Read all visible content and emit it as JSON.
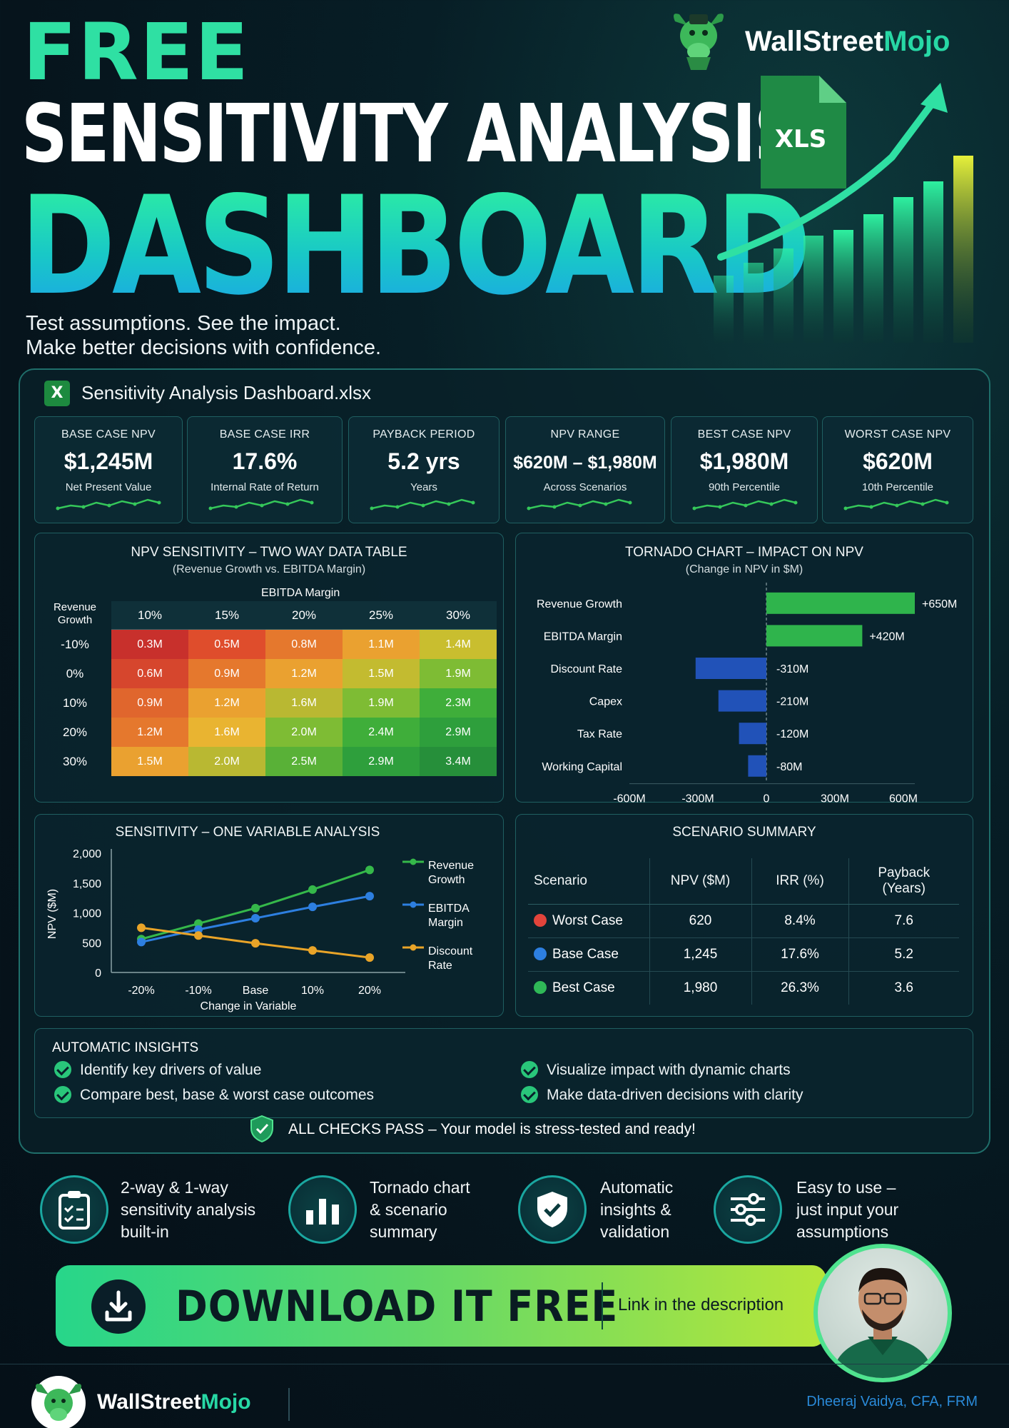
{
  "hero": {
    "free": "FREE",
    "title_line1": "SENSITIVITY ANALYSIS",
    "title_line2": "DASHBOARD",
    "subtitle_line1": "Test assumptions. See the impact.",
    "subtitle_line2": "Make better decisions with confidence.",
    "xls_label": "XLS"
  },
  "brand": {
    "name_main": "WallStreet",
    "name_accent": "Mojo"
  },
  "dashboard": {
    "file_name": "Sensitivity Analysis Dashboard.xlsx",
    "xl_badge": "X",
    "kpis": [
      {
        "label": "BASE CASE NPV",
        "value": "$1,245M",
        "caption": "Net Present Value"
      },
      {
        "label": "BASE CASE IRR",
        "value": "17.6%",
        "caption": "Internal Rate of Return"
      },
      {
        "label": "PAYBACK PERIOD",
        "value": "5.2 yrs",
        "caption": "Years"
      },
      {
        "label": "NPV RANGE",
        "value": "$620M – $1,980M",
        "caption": "Across Scenarios"
      },
      {
        "label": "BEST CASE NPV",
        "value": "$1,980M",
        "caption": "90th Percentile"
      },
      {
        "label": "WORST CASE NPV",
        "value": "$620M",
        "caption": "10th Percentile"
      }
    ],
    "two_way": {
      "title": "NPV SENSITIVITY – TWO WAY DATA TABLE",
      "subtitle": "(Revenue Growth vs. EBITDA Margin)",
      "col_axis_label": "EBITDA Margin",
      "row_axis_label_line1": "Revenue",
      "row_axis_label_line2": "Growth",
      "columns": [
        "10%",
        "15%",
        "20%",
        "25%",
        "30%"
      ],
      "rows": [
        "-10%",
        "0%",
        "10%",
        "20%",
        "30%"
      ],
      "cells": [
        [
          "0.3M",
          "0.5M",
          "0.8M",
          "1.1M",
          "1.4M"
        ],
        [
          "0.6M",
          "0.9M",
          "1.2M",
          "1.5M",
          "1.9M"
        ],
        [
          "0.9M",
          "1.2M",
          "1.6M",
          "1.9M",
          "2.3M"
        ],
        [
          "1.2M",
          "1.6M",
          "2.0M",
          "2.4M",
          "2.9M"
        ],
        [
          "1.5M",
          "2.0M",
          "2.5M",
          "2.9M",
          "3.4M"
        ]
      ],
      "cell_colors": [
        [
          "#c8302c",
          "#df4d2c",
          "#e5782d",
          "#eaa130",
          "#c9be2f"
        ],
        [
          "#d6462d",
          "#e5782d",
          "#eaa130",
          "#c3bb30",
          "#7ebc34"
        ],
        [
          "#e0662d",
          "#eaa130",
          "#b9b832",
          "#7ebc34",
          "#3fae3a"
        ],
        [
          "#e5782d",
          "#e9b431",
          "#7ebc34",
          "#3fae3a",
          "#2e9f3c"
        ],
        [
          "#eaa130",
          "#b9b832",
          "#59b137",
          "#2e9f3c",
          "#268f3a"
        ]
      ]
    },
    "tornado": {
      "title": "TORNADO CHART – IMPACT ON NPV",
      "subtitle": "(Change in NPV in $M)"
    },
    "one_way": {
      "title": "SENSITIVITY – ONE VARIABLE ANALYSIS",
      "legend_revenue_line1": "Revenue",
      "legend_revenue_line2": "Growth",
      "legend_ebitda_line1": "EBITDA",
      "legend_ebitda_line2": "Margin",
      "legend_discount_line1": "Discount",
      "legend_discount_line2": "Rate"
    },
    "scenario": {
      "title": "SCENARIO SUMMARY",
      "headers": {
        "scenario": "Scenario",
        "npv": "NPV ($M)",
        "irr": "IRR (%)",
        "payback_line1": "Payback",
        "payback_line2": "(Years)"
      },
      "rows": [
        {
          "name": "Worst Case",
          "npv": "620",
          "irr": "8.4%",
          "payback": "7.6",
          "color": "#e2443b"
        },
        {
          "name": "Base Case",
          "npv": "1,245",
          "irr": "17.6%",
          "payback": "5.2",
          "color": "#2d7fe0"
        },
        {
          "name": "Best Case",
          "npv": "1,980",
          "irr": "26.3%",
          "payback": "3.6",
          "color": "#2fb857"
        }
      ]
    },
    "insights": {
      "title": "AUTOMATIC INSIGHTS",
      "items": [
        "Identify key drivers of value",
        "Compare best, base & worst case outcomes",
        "Visualize impact with dynamic charts",
        "Make data-driven decisions with clarity"
      ],
      "all_checks": "ALL CHECKS PASS – Your model is stress-tested and ready!"
    }
  },
  "features": [
    {
      "text": "2-way & 1-way\nsensitivity analysis\nbuilt-in",
      "icon": "clipboard-checklist-icon"
    },
    {
      "text": "Tornado chart\n& scenario\nsummary",
      "icon": "bar-chart-icon"
    },
    {
      "text": "Automatic\ninsights &\nvalidation",
      "icon": "shield-check-icon"
    },
    {
      "text": "Easy to use –\njust input your\nassumptions",
      "icon": "sliders-icon"
    }
  ],
  "download": {
    "label": "DOWNLOAD IT FREE",
    "link_text": "Link in the description"
  },
  "footer": {
    "author": "Dheeraj Vaidya, CFA, FRM"
  },
  "chart_data": [
    {
      "type": "bar",
      "orientation": "horizontal",
      "title": "TORNADO CHART – IMPACT ON NPV",
      "subtitle": "(Change in NPV in $M)",
      "categories": [
        "Revenue Growth",
        "EBITDA Margin",
        "Discount Rate",
        "Capex",
        "Tax Rate",
        "Working Capital"
      ],
      "values": [
        650,
        420,
        -310,
        -210,
        -120,
        -80
      ],
      "value_labels": [
        "+650M",
        "+420M",
        "-310M",
        "-210M",
        "-120M",
        "-80M"
      ],
      "xlim": [
        -600,
        650
      ],
      "xticks": [
        -600,
        -300,
        0,
        300,
        600
      ],
      "xtick_labels": [
        "-600M",
        "-300M",
        "0",
        "300M",
        "600M"
      ],
      "colors": {
        "positive": "#2fb44c",
        "negative": "#2152b8"
      }
    },
    {
      "type": "line",
      "title": "SENSITIVITY – ONE VARIABLE ANALYSIS",
      "xlabel": "Change in Variable",
      "ylabel": "NPV ($M)",
      "categories": [
        "-20%",
        "-10%",
        "Base",
        "10%",
        "20%"
      ],
      "ylim": [
        0,
        2000
      ],
      "yticks": [
        0,
        500,
        1000,
        1500,
        2000
      ],
      "ytick_labels": [
        "0",
        "500",
        "1,000",
        "1,500",
        "2,000"
      ],
      "legend": "right",
      "series": [
        {
          "name": "Revenue Growth",
          "values": [
            560,
            820,
            1080,
            1390,
            1720
          ],
          "color": "#35b84a"
        },
        {
          "name": "EBITDA Margin",
          "values": [
            510,
            720,
            910,
            1100,
            1280
          ],
          "color": "#2d7fe0"
        },
        {
          "name": "Discount Rate",
          "values": [
            750,
            620,
            490,
            370,
            250
          ],
          "color": "#e9a428"
        }
      ]
    }
  ]
}
